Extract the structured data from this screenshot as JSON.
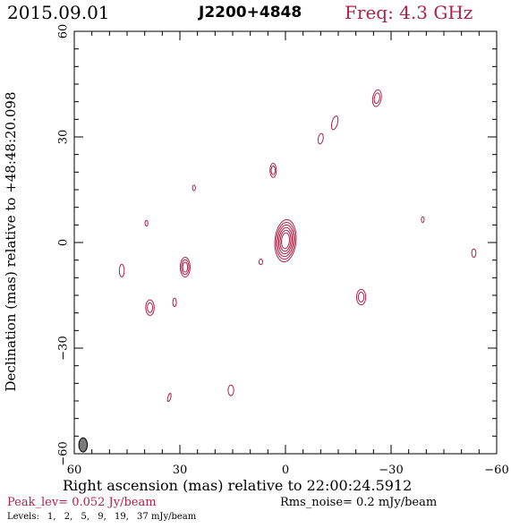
{
  "header": {
    "date": "2015.09.01",
    "source": "J2200+4848",
    "freq": "Freq: 4.3 GHz"
  },
  "footer": {
    "peak": "Peak_lev=  0.052 Jy/beam",
    "rms": "Rms_noise=  0.2 mJy/beam",
    "levels_prefix": "Levels:",
    "levels": [
      "1,",
      "2,",
      "5,",
      "9,",
      "19,",
      "37 mJy/beam"
    ]
  },
  "colors": {
    "contour": "#b0224a",
    "beam": "#7a7a7a",
    "axis": "#000000"
  },
  "chart_data": {
    "type": "contour",
    "xlabel": "Right ascension (mas) relative to 22:00:24.5912",
    "ylabel": "Declination (mas) relative to +48:48:20.098",
    "xlim": [
      60,
      -60
    ],
    "ylim": [
      -60,
      60
    ],
    "xticks": [
      60,
      30,
      0,
      -30,
      -60
    ],
    "yticks": [
      -60,
      -30,
      0,
      30,
      60
    ],
    "xtick_labels": [
      "60",
      "30",
      "0",
      "−30",
      "−60"
    ],
    "ytick_labels": [
      "−60",
      "−30",
      "0",
      "30",
      "60"
    ],
    "beam": {
      "x": 57.5,
      "y": -57.5,
      "major": 2.0,
      "minor": 1.2,
      "pa": 0
    },
    "components": [
      {
        "x": 0.0,
        "y": 0.5,
        "rx": 3.0,
        "ry": 6.0,
        "rot": 5,
        "levels": 6
      },
      {
        "x": -26.0,
        "y": 41.0,
        "rx": 1.2,
        "ry": 2.4,
        "rot": 10,
        "levels": 2
      },
      {
        "x": -14.0,
        "y": 34.0,
        "rx": 0.8,
        "ry": 2.0,
        "rot": 15,
        "levels": 1
      },
      {
        "x": -10.0,
        "y": 29.5,
        "rx": 0.7,
        "ry": 1.5,
        "rot": 10,
        "levels": 1
      },
      {
        "x": 3.5,
        "y": 20.5,
        "rx": 0.9,
        "ry": 2.0,
        "rot": 0,
        "levels": 2
      },
      {
        "x": 26.0,
        "y": 15.5,
        "rx": 0.4,
        "ry": 0.8,
        "rot": 0,
        "levels": 1
      },
      {
        "x": 39.5,
        "y": 5.5,
        "rx": 0.4,
        "ry": 0.8,
        "rot": 0,
        "levels": 1
      },
      {
        "x": -39.0,
        "y": 6.5,
        "rx": 0.4,
        "ry": 0.8,
        "rot": 0,
        "levels": 1
      },
      {
        "x": -53.5,
        "y": -3.0,
        "rx": 0.6,
        "ry": 1.2,
        "rot": 0,
        "levels": 1
      },
      {
        "x": 28.5,
        "y": -7.0,
        "rx": 1.4,
        "ry": 2.8,
        "rot": 0,
        "levels": 3
      },
      {
        "x": 46.5,
        "y": -8.0,
        "rx": 0.7,
        "ry": 1.8,
        "rot": 0,
        "levels": 1
      },
      {
        "x": 7.0,
        "y": -5.5,
        "rx": 0.5,
        "ry": 0.8,
        "rot": 0,
        "levels": 1
      },
      {
        "x": -21.5,
        "y": -15.5,
        "rx": 1.3,
        "ry": 2.2,
        "rot": 0,
        "levels": 2
      },
      {
        "x": 38.5,
        "y": -18.5,
        "rx": 1.2,
        "ry": 2.2,
        "rot": 0,
        "levels": 2
      },
      {
        "x": 31.5,
        "y": -17.0,
        "rx": 0.5,
        "ry": 1.2,
        "rot": 0,
        "levels": 1
      },
      {
        "x": 33.0,
        "y": -44.0,
        "rx": 0.4,
        "ry": 1.2,
        "rot": 15,
        "levels": 1
      },
      {
        "x": 15.5,
        "y": -42.0,
        "rx": 0.8,
        "ry": 1.5,
        "rot": 0,
        "levels": 1
      }
    ]
  }
}
